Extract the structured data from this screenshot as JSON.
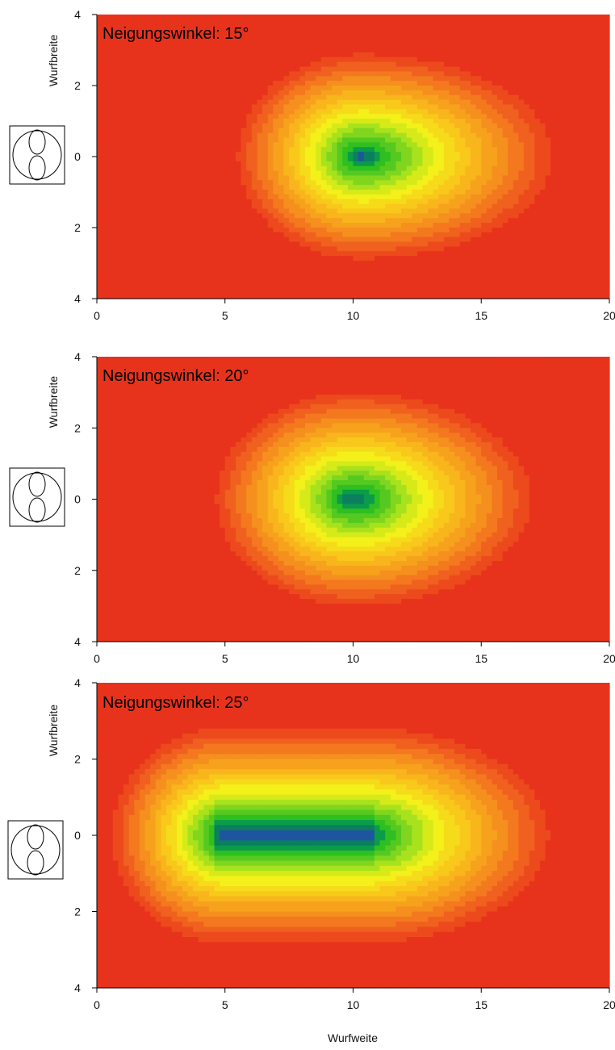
{
  "chart_data": [
    {
      "type": "heatmap",
      "title": "Neigungswinkel: 15°",
      "xlabel": "",
      "ylabel": "Wurfbreite",
      "xlim": [
        0,
        20
      ],
      "ylim": [
        -4,
        4
      ],
      "x_ticks": [
        "0",
        "5",
        "10",
        "15",
        "20"
      ],
      "y_ticks": [
        "4",
        "2",
        "0",
        "2",
        "4"
      ],
      "peak": {
        "x": 10.3,
        "y": 0
      },
      "spread": {
        "back": 4.5,
        "front": 7.0,
        "lateral": 2.7
      },
      "icon": "double-lobe-nozzle-icon"
    },
    {
      "type": "heatmap",
      "title": "Neigungswinkel: 20°",
      "xlabel": "",
      "ylabel": "Wurfbreite",
      "xlim": [
        0,
        20
      ],
      "ylim": [
        -4,
        4
      ],
      "x_ticks": [
        "0",
        "5",
        "10",
        "15",
        "20"
      ],
      "y_ticks": [
        "4",
        "2",
        "0",
        "2",
        "4"
      ],
      "peak": {
        "x": 10.0,
        "y": 0
      },
      "spread": {
        "back": 5.0,
        "front": 6.5,
        "lateral": 2.8
      },
      "icon": "double-lobe-nozzle-icon"
    },
    {
      "type": "heatmap",
      "title": "Neigungswinkel: 25°",
      "xlabel": "Wurfweite",
      "ylabel": "Wurfbreite",
      "xlim": [
        0,
        20
      ],
      "ylim": [
        -4,
        4
      ],
      "x_ticks": [
        "0",
        "5",
        "10",
        "15",
        "20"
      ],
      "y_ticks": [
        "4",
        "2",
        "0",
        "2",
        "4"
      ],
      "peak": {
        "x": 6.5,
        "y": 0
      },
      "ridge": [
        5.0,
        10.5
      ],
      "spread": {
        "back": 4.0,
        "front": 6.5,
        "lateral": 2.8
      },
      "icon": "double-lobe-nozzle-icon"
    }
  ],
  "colors": {
    "low": "#e8331c",
    "orange": "#f7a21c",
    "yellow": "#f4f01a",
    "yellow_green": "#a8e21c",
    "green": "#2fbf21",
    "dark_green": "#0a9c4a",
    "peak": "#1f55a0"
  }
}
